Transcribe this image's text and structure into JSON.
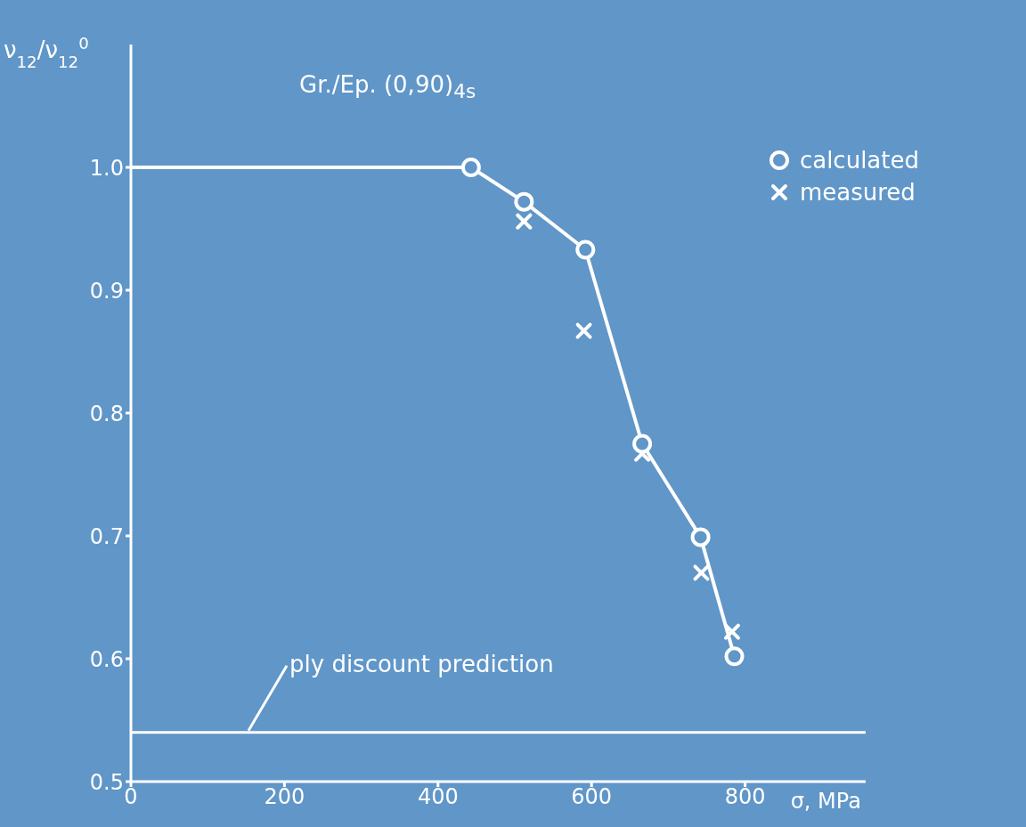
{
  "chart_data": {
    "type": "line",
    "title": "Gr./Ep. (0,90)$_{4s}$",
    "xlabel": "σ, MPa",
    "ylabel": "ν$_{12}$/ν$_{12}$$^{0}$",
    "xlim": [
      0,
      957
    ],
    "xticks": [
      0,
      200,
      400,
      600,
      800
    ],
    "ylim": [
      0.5,
      1.1
    ],
    "yticks": [
      {
        "value": 0.5,
        "label": "0.5"
      },
      {
        "value": 0.6,
        "label": "0.6"
      },
      {
        "value": 0.7,
        "label": "0.7"
      },
      {
        "value": 0.8,
        "label": "0.8"
      },
      {
        "value": 0.9,
        "label": "0.9"
      },
      {
        "value": 1,
        "label": "1.0"
      }
    ],
    "grid": false,
    "legend": "top right",
    "series": [
      {
        "color": "#ffffff",
        "x": [
          0,
          443
        ],
        "values": [
          1.0,
          1.0
        ]
      },
      {
        "name": "calculated",
        "color": "#ffffff",
        "marker": "circle",
        "x": [
          443,
          512,
          592,
          666,
          742,
          786
        ],
        "values": [
          1.0,
          0.972,
          0.933,
          0.775,
          0.699,
          0.602
        ]
      },
      {
        "name": "measured",
        "type": "scatter",
        "color": "#ffffff",
        "marker": "cross",
        "x": [
          512,
          590,
          666,
          743,
          783
        ],
        "values": [
          0.956,
          0.867,
          0.767,
          0.67,
          0.622
        ]
      }
    ],
    "ref_lines": [
      {
        "axis": "y",
        "value": 0.54,
        "label": "ply discount prediction",
        "color": "#ffffff"
      }
    ]
  }
}
